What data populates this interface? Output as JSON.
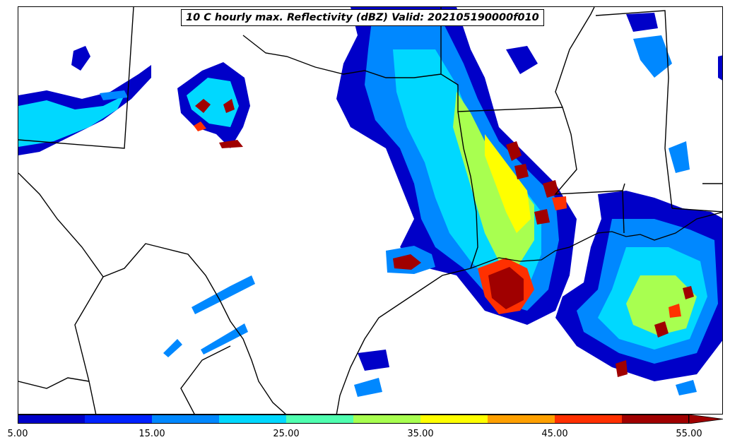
{
  "title": "10 C hourly max. Reflectivity (dBZ) Valid: 202105190000f010",
  "colorbar": {
    "levels": [
      5,
      10,
      15,
      20,
      25,
      30,
      35,
      40,
      45,
      50,
      55
    ],
    "colors": [
      "#0000c8",
      "#0022ff",
      "#0088ff",
      "#00d8ff",
      "#50ffb0",
      "#a8ff50",
      "#ffff00",
      "#ffa000",
      "#ff3000",
      "#a00000"
    ],
    "extend_color": "#a00000",
    "tick_labels": [
      "5.00",
      "15.00",
      "25.00",
      "35.00",
      "45.00",
      "55.00"
    ]
  }
}
